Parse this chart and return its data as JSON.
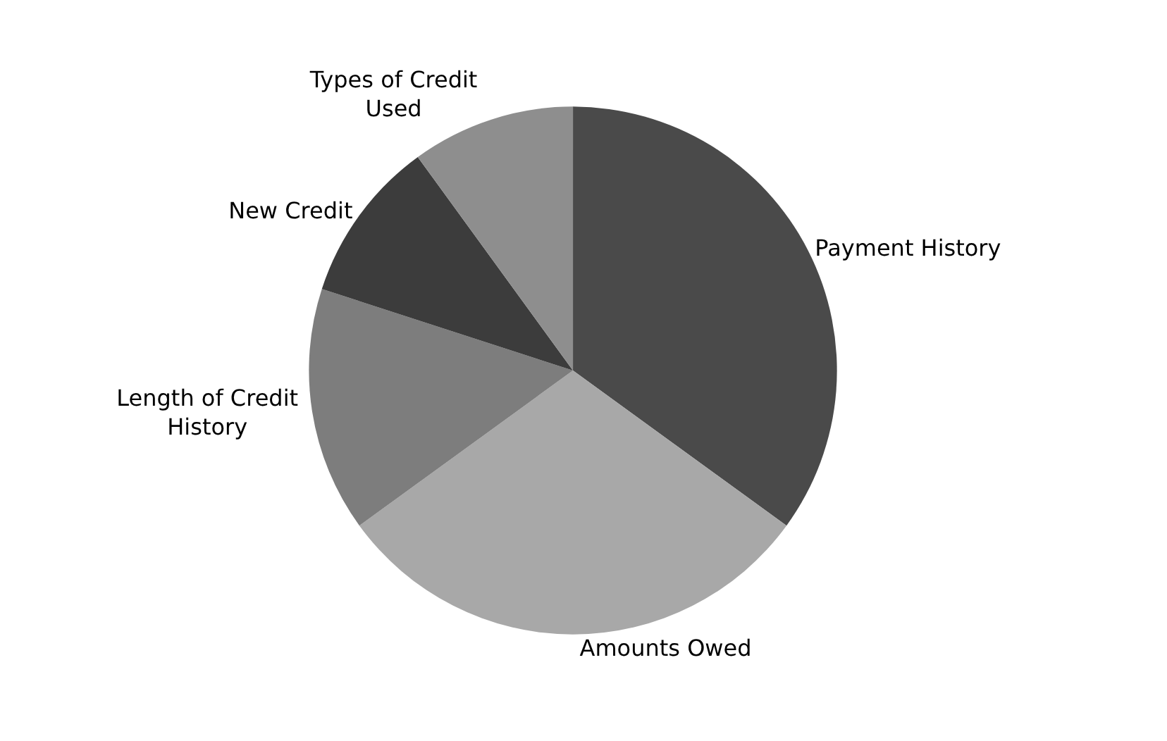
{
  "chart_data": {
    "type": "pie",
    "categories": [
      "Payment History",
      "Amounts Owed",
      "Length of Credit History",
      "New Credit",
      "Types of Credit Used"
    ],
    "values": [
      35,
      30,
      15,
      10,
      10
    ],
    "colors": [
      "#4a4a4a",
      "#a8a8a8",
      "#7d7d7d",
      "#3c3c3c",
      "#8e8e8e"
    ],
    "legend": false
  }
}
